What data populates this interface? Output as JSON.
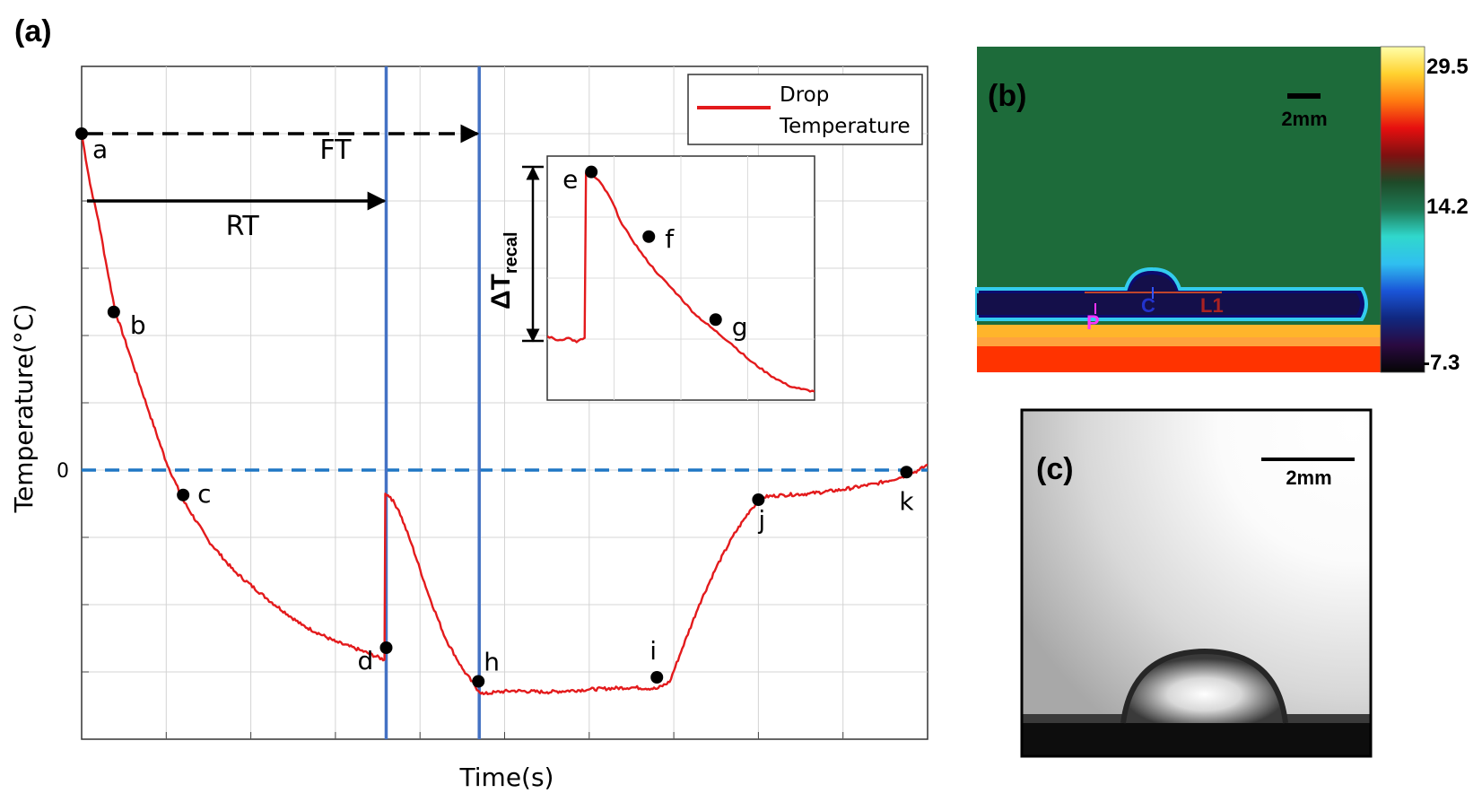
{
  "panels": {
    "a_label": "(a)",
    "b_label": "(b)",
    "c_label": "(c)"
  },
  "chart_data": {
    "type": "line",
    "panel": "(a)",
    "xlabel": "Time(s)",
    "ylabel": "Temperature(°C)",
    "y_tick_labels": [
      "0"
    ],
    "xlim": [
      0,
      10
    ],
    "ylim": [
      -4,
      6
    ],
    "grid": true,
    "legend": {
      "entries": [
        "Drop Temperature"
      ],
      "lines": [
        "Drop",
        "Temperature"
      ],
      "placement": "top-right",
      "color": "#e31a1c"
    },
    "series": [
      {
        "name": "Drop Temperature",
        "color": "#e31a1c",
        "x": [
          0,
          0.1,
          0.2,
          0.3,
          0.4,
          0.6,
          0.8,
          1.0,
          1.2,
          1.5,
          1.8,
          2.2,
          2.6,
          3.0,
          3.3,
          3.58,
          3.59,
          3.65,
          3.75,
          3.9,
          4.1,
          4.3,
          4.5,
          4.69,
          4.75,
          4.9,
          5.1,
          5.5,
          6.0,
          6.5,
          6.8,
          6.95,
          7.1,
          7.3,
          7.5,
          7.7,
          7.9,
          8.05,
          8.3,
          8.6,
          9.0,
          9.4,
          9.7,
          9.9,
          10.0
        ],
        "y": [
          5.0,
          4.25,
          3.7,
          3.0,
          2.35,
          1.6,
          0.85,
          0.12,
          -0.45,
          -1.05,
          -1.5,
          -1.92,
          -2.3,
          -2.55,
          -2.68,
          -2.82,
          -0.35,
          -0.4,
          -0.6,
          -1.1,
          -1.85,
          -2.5,
          -2.95,
          -3.28,
          -3.33,
          -3.3,
          -3.28,
          -3.3,
          -3.26,
          -3.23,
          -3.25,
          -3.15,
          -2.65,
          -2.0,
          -1.45,
          -0.98,
          -0.6,
          -0.4,
          -0.37,
          -0.35,
          -0.29,
          -0.2,
          -0.1,
          0.0,
          0.08
        ]
      }
    ],
    "reference_lines": [
      {
        "kind": "horizontal",
        "y": 0,
        "style": "dashed",
        "color": "#1f77c4"
      },
      {
        "kind": "vertical",
        "x": 3.6,
        "color": "#4472c4"
      },
      {
        "kind": "vertical",
        "x": 4.7,
        "color": "#4472c4"
      }
    ],
    "points": [
      {
        "label": "a",
        "x": 0.0,
        "y": 5.0
      },
      {
        "label": "b",
        "x": 0.38,
        "y": 2.35
      },
      {
        "label": "c",
        "x": 1.2,
        "y": -0.37
      },
      {
        "label": "d",
        "x": 3.6,
        "y": -2.64
      },
      {
        "label": "h",
        "x": 4.69,
        "y": -3.14
      },
      {
        "label": "i",
        "x": 6.8,
        "y": -3.08
      },
      {
        "label": "j",
        "x": 8.0,
        "y": -0.44
      },
      {
        "label": "k",
        "x": 9.75,
        "y": -0.03
      }
    ],
    "annotations": [
      {
        "text": "FT",
        "x_from": 0,
        "x_to": 4.7,
        "y": 5.0,
        "style": "dashed-arrow"
      },
      {
        "text": "RT",
        "x_from": 0,
        "x_to": 3.6,
        "y": 4.0,
        "style": "solid-arrow"
      }
    ],
    "inset": {
      "type": "line",
      "annotation": {
        "text": "ΔT",
        "subscript": "recal"
      },
      "xlim": [
        0,
        10
      ],
      "ylim": [
        0,
        10
      ],
      "series": [
        {
          "name": "Drop Temperature",
          "color": "#e31a1c",
          "x": [
            0,
            0.4,
            0.8,
            1.1,
            1.4,
            1.45,
            1.55,
            1.7,
            2.0,
            2.4,
            2.8,
            3.1,
            3.6,
            4.2,
            4.9,
            5.5,
            6.1,
            6.9,
            7.6,
            8.3,
            9.0,
            9.5,
            10.0
          ],
          "y": [
            2.62,
            2.45,
            2.55,
            2.38,
            2.55,
            9.3,
            9.4,
            9.2,
            8.9,
            8.2,
            7.2,
            6.7,
            5.9,
            5.1,
            4.3,
            3.55,
            3.0,
            2.3,
            1.6,
            1.05,
            0.6,
            0.45,
            0.35
          ]
        }
      ],
      "points": [
        {
          "label": "e",
          "x": 1.65,
          "y": 9.35
        },
        {
          "label": "f",
          "x": 3.8,
          "y": 6.7
        },
        {
          "label": "g",
          "x": 6.3,
          "y": 3.3
        }
      ]
    }
  },
  "thermal_image": {
    "scale_bar": "2mm",
    "colorbar_ticks": [
      "29.5",
      "14.2",
      "-7.3"
    ],
    "markers": {
      "p": "P",
      "c": "C",
      "l": "L1"
    },
    "colors": {
      "background": "#1d6b3a",
      "cold": "#0a0a6e",
      "edge": "#33ccee",
      "hot": "#ff2200"
    },
    "colorbar_stops": [
      "#ffffaa",
      "#ffd230",
      "#ff7a10",
      "#e60f0f",
      "#801010",
      "#1e4a28",
      "#1e7a55",
      "#30d8cc",
      "#30bff0",
      "#1a55d8",
      "#102880",
      "#2a0a40",
      "#050505"
    ]
  },
  "side_image": {
    "scale_bar": "2mm"
  }
}
